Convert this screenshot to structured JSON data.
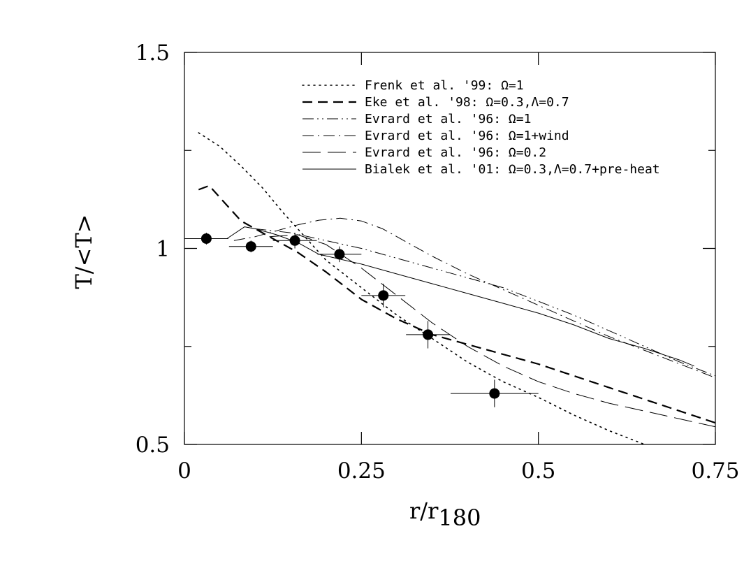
{
  "chart_data": {
    "type": "line",
    "title": "",
    "xlabel": "r/r",
    "xlabel_sub": "180",
    "ylabel": "T/<T>",
    "xlim": [
      0,
      0.75
    ],
    "ylim": [
      0.5,
      1.5
    ],
    "x_ticks": [
      {
        "value": 0,
        "label": "0"
      },
      {
        "value": 0.25,
        "label": "0.25"
      },
      {
        "value": 0.5,
        "label": "0.5"
      },
      {
        "value": 0.75,
        "label": "0.75"
      }
    ],
    "y_ticks": [
      {
        "value": 0.5,
        "label": "0.5"
      },
      {
        "value": 1.0,
        "label": "1"
      },
      {
        "value": 1.5,
        "label": "1.5"
      }
    ],
    "y_minor_ticks": [
      0.75,
      1.25
    ],
    "grid": false,
    "legend_position": "top-right",
    "series": [
      {
        "name": "Frenk et al. '99: Ω=1",
        "style": "dotted",
        "x": [
          0.02,
          0.05,
          0.08,
          0.11,
          0.14,
          0.17,
          0.2,
          0.25,
          0.3,
          0.35,
          0.4,
          0.45,
          0.5,
          0.55,
          0.6,
          0.65
        ],
        "y": [
          1.295,
          1.26,
          1.21,
          1.155,
          1.09,
          1.03,
          0.97,
          0.9,
          0.83,
          0.77,
          0.71,
          0.66,
          0.62,
          0.575,
          0.535,
          0.5
        ]
      },
      {
        "name": "Eke et al. '98: Ω=0.3,Λ=0.7",
        "style": "dashed",
        "x": [
          0.02,
          0.035,
          0.05,
          0.065,
          0.08,
          0.1,
          0.13,
          0.16,
          0.2,
          0.25,
          0.3,
          0.35,
          0.4,
          0.45,
          0.5,
          0.55,
          0.6,
          0.65,
          0.7,
          0.75
        ],
        "y": [
          1.15,
          1.16,
          1.13,
          1.1,
          1.07,
          1.05,
          1.02,
          0.99,
          0.94,
          0.87,
          0.82,
          0.78,
          0.755,
          0.73,
          0.705,
          0.675,
          0.645,
          0.615,
          0.585,
          0.555
        ]
      },
      {
        "name": "Evrard et al. '96: Ω=1",
        "style": "dash-dot-dot",
        "x": [
          0.1,
          0.15,
          0.2,
          0.25,
          0.3,
          0.35,
          0.4,
          0.45,
          0.5,
          0.55,
          0.6,
          0.65,
          0.7,
          0.75
        ],
        "y": [
          1.05,
          1.04,
          1.02,
          1.0,
          0.975,
          0.95,
          0.925,
          0.9,
          0.865,
          0.83,
          0.79,
          0.75,
          0.71,
          0.675
        ]
      },
      {
        "name": "Evrard et al. '96: Ω=1+wind",
        "style": "dash-dot",
        "x": [
          0.07,
          0.1,
          0.13,
          0.16,
          0.19,
          0.22,
          0.25,
          0.28,
          0.31,
          0.35,
          0.4,
          0.45,
          0.5,
          0.55,
          0.6,
          0.65,
          0.7,
          0.75
        ],
        "y": [
          1.02,
          1.03,
          1.045,
          1.06,
          1.072,
          1.077,
          1.07,
          1.05,
          1.02,
          0.98,
          0.935,
          0.895,
          0.855,
          0.815,
          0.775,
          0.74,
          0.705,
          0.67
        ]
      },
      {
        "name": "Evrard et al. '96: Ω=0.2",
        "style": "long-dash",
        "x": [
          0.12,
          0.16,
          0.2,
          0.25,
          0.3,
          0.35,
          0.4,
          0.45,
          0.5,
          0.55,
          0.6,
          0.65,
          0.7,
          0.75
        ],
        "y": [
          1.03,
          1.035,
          1.01,
          0.95,
          0.88,
          0.81,
          0.75,
          0.7,
          0.66,
          0.63,
          0.605,
          0.585,
          0.565,
          0.545
        ]
      },
      {
        "name": "Bialek et al. '01: Ω=0.3,Λ=0.7+pre-heat",
        "style": "solid",
        "x": [
          0.0,
          0.06,
          0.085,
          0.1,
          0.13,
          0.16,
          0.19,
          0.25,
          0.3,
          0.35,
          0.4,
          0.45,
          0.5,
          0.55,
          0.6,
          0.65,
          0.7,
          0.72
        ],
        "y": [
          1.025,
          1.025,
          1.055,
          1.05,
          1.035,
          1.015,
          0.985,
          0.96,
          0.935,
          0.91,
          0.885,
          0.86,
          0.835,
          0.805,
          0.77,
          0.745,
          0.715,
          0.7
        ]
      }
    ],
    "points": {
      "x": [
        0.031,
        0.094,
        0.156,
        0.219,
        0.281,
        0.344,
        0.438
      ],
      "y": [
        1.025,
        1.005,
        1.02,
        0.985,
        0.88,
        0.78,
        0.63
      ],
      "xerr": [
        0.031,
        0.031,
        0.031,
        0.031,
        0.031,
        0.031,
        0.062
      ],
      "yerr": [
        0.015,
        0.015,
        0.02,
        0.02,
        0.03,
        0.035,
        0.035
      ]
    }
  }
}
